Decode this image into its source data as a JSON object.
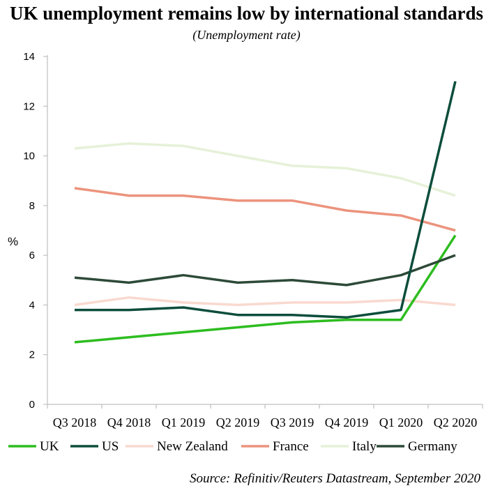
{
  "chart_data": {
    "type": "line",
    "title": "UK unemployment remains low by international standards",
    "subtitle": "(Unemployment rate)",
    "ylabel": "%",
    "xlabel": "",
    "ylim": [
      0,
      14
    ],
    "yticks": [
      0,
      2,
      4,
      6,
      8,
      10,
      12,
      14
    ],
    "categories": [
      "Q3 2018",
      "Q4 2018",
      "Q1 2019",
      "Q2 2019",
      "Q3 2019",
      "Q4 2019",
      "Q1 2020",
      "Q2 2020"
    ],
    "grid": false,
    "legend_position": "bottom",
    "series": [
      {
        "name": "UK",
        "color": "#2dbd1f",
        "values": [
          2.5,
          2.7,
          2.9,
          3.1,
          3.3,
          3.4,
          3.4,
          6.8
        ]
      },
      {
        "name": "US",
        "color": "#0d4d3c",
        "values": [
          3.8,
          3.8,
          3.9,
          3.6,
          3.6,
          3.5,
          3.8,
          13.0
        ]
      },
      {
        "name": "New Zealand",
        "color": "#f9d9cf",
        "values": [
          4.0,
          4.3,
          4.1,
          4.0,
          4.1,
          4.1,
          4.2,
          4.0
        ]
      },
      {
        "name": "France",
        "color": "#ec937d",
        "values": [
          8.7,
          8.4,
          8.4,
          8.2,
          8.2,
          7.8,
          7.6,
          7.0
        ]
      },
      {
        "name": "Italy",
        "color": "#e6f1d8",
        "values": [
          10.3,
          10.5,
          10.4,
          10.0,
          9.6,
          9.5,
          9.1,
          8.4
        ]
      },
      {
        "name": "Germany",
        "color": "#2d4a38",
        "values": [
          5.1,
          4.9,
          5.2,
          4.9,
          5.0,
          4.8,
          5.2,
          6.0
        ]
      }
    ],
    "source": "Source: Refinitiv/Reuters Datastream, September 2020"
  }
}
